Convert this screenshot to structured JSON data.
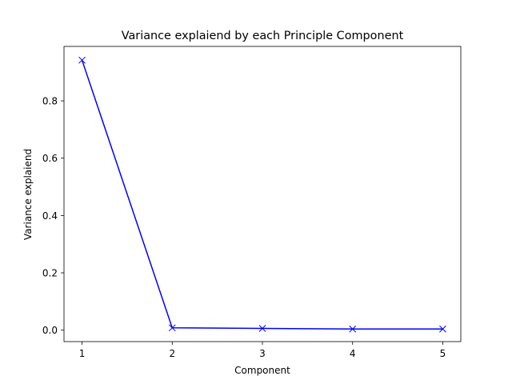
{
  "chart_data": {
    "type": "line",
    "title": "Variance explaiend by each Principle Component",
    "xlabel": "Component",
    "ylabel": "Variance explaiend",
    "x": [
      1,
      2,
      3,
      4,
      5
    ],
    "series": [
      {
        "values": [
          0.942,
          0.008,
          0.006,
          0.004,
          0.004
        ],
        "color": "#0000ff",
        "marker": "x"
      }
    ],
    "xlim": [
      0.8,
      5.2
    ],
    "ylim": [
      -0.04,
      0.99
    ],
    "xticks": [
      1,
      2,
      3,
      4,
      5
    ],
    "xtick_labels": [
      "1",
      "2",
      "3",
      "4",
      "5"
    ],
    "yticks": [
      0.0,
      0.2,
      0.4,
      0.6,
      0.8
    ],
    "ytick_labels": [
      "0.0",
      "0.2",
      "0.4",
      "0.6",
      "0.8"
    ],
    "grid": false,
    "legend": false
  }
}
